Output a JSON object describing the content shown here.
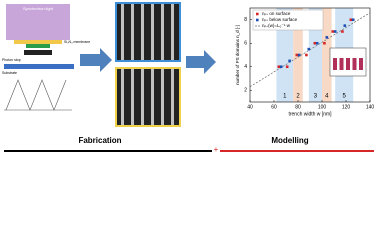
{
  "schematic": {
    "title": "Synchrotron light",
    "membrane": "Si₃N₄ membrane",
    "stop": "Photon stop",
    "substrate": "Substrate"
  },
  "captions": {
    "fabrication": "Fabrication",
    "plus": "+",
    "modelling": "Modelling"
  },
  "chart_data": {
    "type": "scatter",
    "xlabel": "trench width w [nm]",
    "ylabel": "number of PS domains n_d [-]",
    "xlim": [
      40,
      140
    ],
    "xticks": [
      40,
      60,
      80,
      100,
      120,
      140
    ],
    "ylim": [
      1,
      9
    ],
    "yticks": [
      2,
      4,
      6,
      8
    ],
    "regions": [
      {
        "label": "1",
        "range": [
          62,
          76
        ],
        "color": "#cfe3f5"
      },
      {
        "label": "2",
        "range": [
          76,
          84
        ],
        "color": "#f8d9c6"
      },
      {
        "label": "3",
        "range": [
          89,
          100
        ],
        "color": "#cfe3f5"
      },
      {
        "label": "4",
        "range": [
          100,
          108
        ],
        "color": "#f8d9c6"
      },
      {
        "label": "5",
        "range": [
          111,
          126
        ],
        "color": "#cfe3f5"
      }
    ],
    "x": [
      65,
      72,
      80,
      88,
      95,
      103,
      110,
      118,
      125
    ],
    "series": [
      {
        "name": "nₚₛ on surface",
        "color": "#d62728",
        "values": [
          4,
          4,
          5,
          5,
          6,
          6,
          7,
          7,
          8
        ]
      },
      {
        "name": "nₚₛ below surface",
        "color": "#1f4fb4",
        "values": [
          4,
          4.5,
          5,
          5.5,
          6,
          6.5,
          7,
          7.5,
          8
        ]
      }
    ],
    "fit": {
      "name": "nₚₛ(w)=L₀⁻¹·w",
      "color": "#666666",
      "x": [
        40,
        140
      ],
      "values": [
        2.3,
        8.6
      ]
    }
  }
}
